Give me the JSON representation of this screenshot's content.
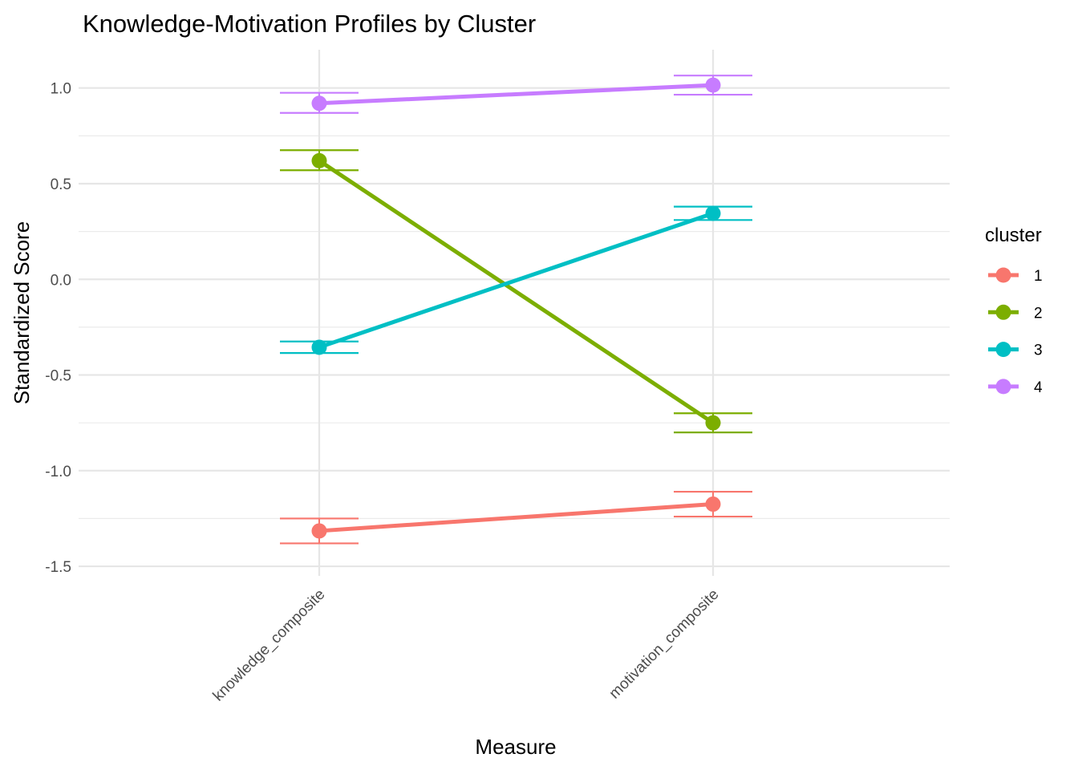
{
  "chart_data": {
    "type": "line",
    "title": "Knowledge-Motivation Profiles by Cluster",
    "xlabel": "Measure",
    "ylabel": "Standardized Score",
    "categories": [
      "knowledge_composite",
      "motivation_composite"
    ],
    "ylim": [
      -1.55,
      1.2
    ],
    "y_ticks": [
      -1.5,
      -1.0,
      -0.5,
      0.0,
      0.5,
      1.0
    ],
    "y_tick_labels": [
      "-1.5",
      "-1.0",
      "-0.5",
      "0.0",
      "0.5",
      "1.0"
    ],
    "grid": true,
    "legend": {
      "title": "cluster",
      "position": "right"
    },
    "series": [
      {
        "name": "1",
        "color": "#F8766D",
        "values": [
          -1.315,
          -1.175
        ],
        "err_low": [
          -1.38,
          -1.24
        ],
        "err_high": [
          -1.25,
          -1.11
        ]
      },
      {
        "name": "2",
        "color": "#7CAE00",
        "values": [
          0.62,
          -0.75
        ],
        "err_low": [
          0.57,
          -0.8
        ],
        "err_high": [
          0.675,
          -0.7
        ]
      },
      {
        "name": "3",
        "color": "#00BFC4",
        "values": [
          -0.355,
          0.345
        ],
        "err_low": [
          -0.385,
          0.31
        ],
        "err_high": [
          -0.325,
          0.38
        ]
      },
      {
        "name": "4",
        "color": "#C77CFF",
        "values": [
          0.92,
          1.015
        ],
        "err_low": [
          0.87,
          0.965
        ],
        "err_high": [
          0.975,
          1.065
        ]
      }
    ]
  }
}
